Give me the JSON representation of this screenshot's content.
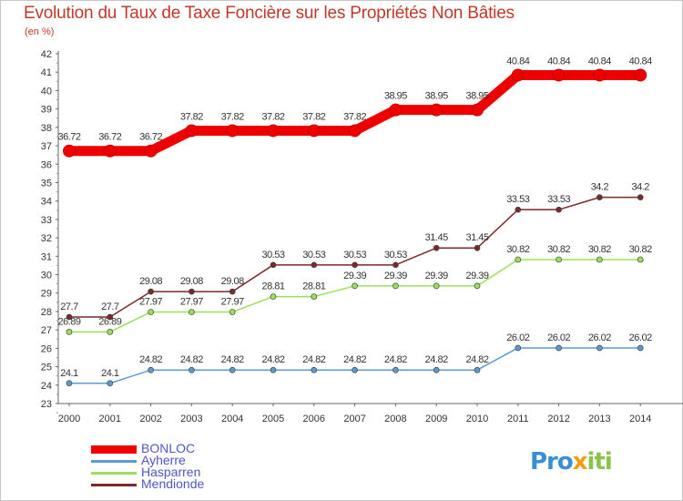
{
  "chart_data": {
    "type": "line",
    "title": "Evolution du Taux de Taxe Foncière sur les Propriétés Non Bâties",
    "ylabel": "(en %)",
    "xlabel": "",
    "ylim": [
      23,
      42
    ],
    "yticks": [
      23,
      24,
      25,
      26,
      27,
      28,
      29,
      30,
      31,
      32,
      33,
      34,
      35,
      36,
      37,
      38,
      39,
      40,
      41,
      42
    ],
    "categories": [
      "2000",
      "2001",
      "2002",
      "2003",
      "2004",
      "2005",
      "2006",
      "2007",
      "2008",
      "2009",
      "2010",
      "2011",
      "2012",
      "2013",
      "2014"
    ],
    "series": [
      {
        "name": "BONLOC",
        "color": "#ee0000",
        "values": [
          36.72,
          36.72,
          36.72,
          37.82,
          37.82,
          37.82,
          37.82,
          37.82,
          38.95,
          38.95,
          38.95,
          40.84,
          40.84,
          40.84,
          40.84
        ],
        "labels": [
          "36.72",
          "36.72",
          "36.72",
          "37.82",
          "37.82",
          "37.82",
          "37.82",
          "37.82",
          "38.95",
          "38.95",
          "38.95",
          "40.84",
          "40.84",
          "40.84",
          "40.84"
        ]
      },
      {
        "name": "Ayherre",
        "color": "#5b9bd5",
        "values": [
          24.1,
          24.1,
          24.82,
          24.82,
          24.82,
          24.82,
          24.82,
          24.82,
          24.82,
          24.82,
          24.82,
          26.02,
          26.02,
          26.02,
          26.02
        ],
        "labels": [
          "24.1",
          "24.1",
          "24.82",
          "24.82",
          "24.82",
          "24.82",
          "24.82",
          "24.82",
          "24.82",
          "24.82",
          "24.82",
          "26.02",
          "26.02",
          "26.02",
          "26.02"
        ]
      },
      {
        "name": "Hasparren",
        "color": "#9be05a",
        "values": [
          26.89,
          26.89,
          27.97,
          27.97,
          27.97,
          28.81,
          28.81,
          29.39,
          29.39,
          29.39,
          29.39,
          30.82,
          30.82,
          30.82,
          30.82
        ],
        "labels": [
          "26.89",
          "26.89",
          "27.97",
          "27.97",
          "27.97",
          "28.81",
          "28.81",
          "29.39",
          "29.39",
          "29.39",
          "29.39",
          "30.82",
          "30.82",
          "30.82",
          "30.82"
        ]
      },
      {
        "name": "Mendionde",
        "color": "#7b2a2a",
        "values": [
          27.7,
          27.7,
          29.08,
          29.08,
          29.08,
          30.53,
          30.53,
          30.53,
          30.53,
          31.45,
          31.45,
          33.53,
          33.53,
          34.2,
          34.2
        ],
        "labels": [
          "27.7",
          "27.7",
          "29.08",
          "29.08",
          "29.08",
          "30.53",
          "30.53",
          "30.53",
          "30.53",
          "31.45",
          "31.45",
          "33.53",
          "33.53",
          "34.2",
          "34.2"
        ]
      }
    ],
    "legend_position": "bottom-left",
    "grid": false
  },
  "logo": {
    "part1": "Pro",
    "part2": "x",
    "part3": "iti"
  }
}
